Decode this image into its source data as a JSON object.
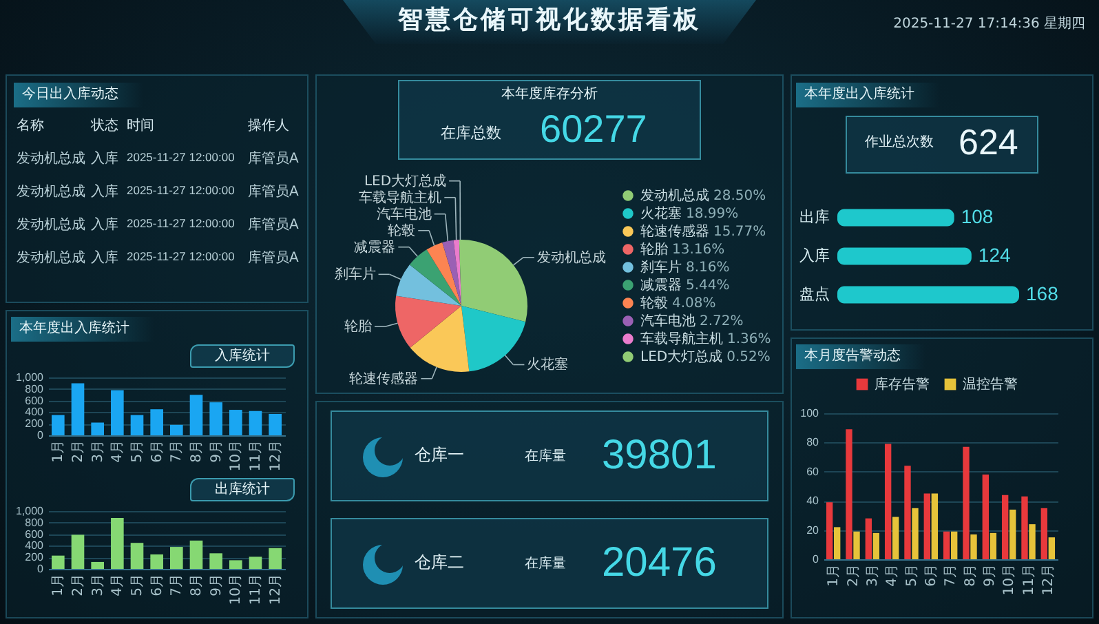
{
  "chart_data": [
    {
      "type": "other",
      "title": "智慧仓储可视化数据看板",
      "annotations": [
        "2025-11-27 17:14:36 星期四"
      ]
    },
    {
      "type": "other",
      "title": "今日出入库动态",
      "categories": [
        "名称",
        "状态",
        "时间",
        "操作人"
      ],
      "annotations": [
        "发动机总成",
        "入库",
        "2025-11-27 12:00:00",
        "库管员A",
        "发动机总成",
        "入库",
        "2025-11-27 12:00:00",
        "库管员A",
        "发动机总成",
        "入库",
        "2025-11-27 12:00:00",
        "库管员A",
        "发动机总成",
        "入库",
        "2025-11-27 12:00:00",
        "库管员A"
      ]
    },
    {
      "type": "other",
      "title": "本年度出入库统计"
    },
    {
      "type": "bar",
      "title": "入库统计",
      "categories": [
        "1月",
        "2月",
        "3月",
        "4月",
        "5月",
        "6月",
        "7月",
        "8月",
        "9月",
        "10月",
        "11月",
        "12月"
      ],
      "values": [
        350,
        900,
        220,
        780,
        350,
        450,
        180,
        700,
        570,
        440,
        420,
        370
      ],
      "color": "#1aa6f2",
      "ylim": [
        0,
        1000
      ],
      "yticks": [
        0,
        200,
        400,
        600,
        800,
        {
          "value": 1000,
          "label": "1,000"
        }
      ],
      "grid": "y"
    },
    {
      "type": "bar",
      "title": "出库统计",
      "categories": [
        "1月",
        "2月",
        "3月",
        "4月",
        "5月",
        "6月",
        "7月",
        "8月",
        "9月",
        "10月",
        "11月",
        "12月"
      ],
      "values": [
        230,
        590,
        120,
        880,
        450,
        250,
        380,
        490,
        270,
        150,
        210,
        360
      ],
      "color": "#86d873",
      "ylim": [
        0,
        1000
      ],
      "yticks": [
        0,
        200,
        400,
        600,
        800,
        {
          "value": 1000,
          "label": "1,000"
        }
      ],
      "grid": "y"
    },
    {
      "type": "other",
      "title": "本年度库存分析",
      "annotations": [
        "在库总数",
        "60277"
      ]
    },
    {
      "type": "pie",
      "categories": [
        "发动机总成",
        "火花塞",
        "轮速传感器",
        "轮胎",
        "刹车片",
        "减震器",
        "轮毂",
        "汽车电池",
        "车载导航主机",
        "LED大灯总成"
      ],
      "values": [
        28.5,
        18.99,
        15.77,
        13.16,
        8.16,
        5.44,
        4.08,
        2.72,
        1.36,
        0.52
      ],
      "value_labels": [
        "28.50%",
        "18.99%",
        "15.77%",
        "13.16%",
        "8.16%",
        "5.44%",
        "4.08%",
        "2.72%",
        "1.36%",
        "0.52%"
      ],
      "colors": [
        "#91cc75",
        "#1fc8c8",
        "#fac858",
        "#ee6666",
        "#73c0de",
        "#3ba272",
        "#fc8452",
        "#9a60b4",
        "#ea7ccc",
        "#91cc75"
      ],
      "legend": "right"
    },
    {
      "type": "other",
      "annotations": [
        "仓库一",
        "在库量",
        "39801"
      ]
    },
    {
      "type": "other",
      "annotations": [
        "仓库二",
        "在库量",
        "20476"
      ]
    },
    {
      "type": "other",
      "title": "本年度出入库统计",
      "annotations": [
        "作业总次数",
        "624"
      ]
    },
    {
      "type": "bar",
      "orientation": "horizontal",
      "categories": [
        "出库",
        "入库",
        "盘点"
      ],
      "values": [
        108,
        124,
        168
      ],
      "color": "#1ec8cc",
      "data_labels": true
    },
    {
      "type": "bar",
      "title": "本月度告警动态",
      "categories": [
        "1月",
        "2月",
        "3月",
        "4月",
        "5月",
        "6月",
        "7月",
        "8月",
        "9月",
        "10月",
        "11月",
        "12月"
      ],
      "series": [
        {
          "name": "库存告警",
          "color": "#e8393c",
          "values": [
            39,
            89,
            28,
            79,
            64,
            45,
            19,
            77,
            58,
            44,
            43,
            35
          ]
        },
        {
          "name": "温控告警",
          "color": "#e6c33a",
          "values": [
            22,
            19,
            18,
            29,
            35,
            45,
            19,
            17,
            18,
            34,
            24,
            15
          ]
        }
      ],
      "ylim": [
        0,
        100
      ],
      "yticks": [
        0,
        20,
        40,
        60,
        80,
        100
      ],
      "grid": "y",
      "legend": "top"
    }
  ]
}
